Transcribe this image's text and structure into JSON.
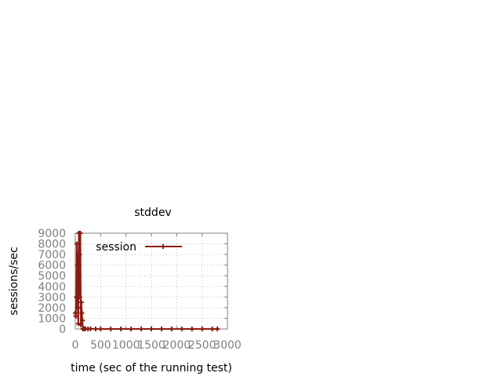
{
  "chart_data": {
    "type": "line",
    "title": "stddev",
    "xlabel": "time (sec of the running test)",
    "ylabel": "sessions/sec",
    "xlim": [
      0,
      3000
    ],
    "ylim": [
      0,
      9000
    ],
    "x_ticks": [
      0,
      500,
      1000,
      1500,
      2000,
      2500,
      3000
    ],
    "y_ticks": [
      0,
      1000,
      2000,
      3000,
      4000,
      5000,
      6000,
      7000,
      8000,
      9000
    ],
    "x_tick_labels": [
      "0",
      "500",
      "1000",
      "1500",
      "2000",
      "2500",
      "3000"
    ],
    "y_tick_labels": [
      "0",
      "1000",
      "2000",
      "3000",
      "4000",
      "5000",
      "6000",
      "7000",
      "8000",
      "9000"
    ],
    "grid": true,
    "legend_position": "top-right",
    "series": [
      {
        "name": "session",
        "color": "#8b1a0e",
        "x": [
          0,
          10,
          20,
          30,
          40,
          50,
          60,
          70,
          80,
          90,
          100,
          110,
          120,
          130,
          140,
          150,
          160,
          180,
          200,
          250,
          300,
          400,
          500,
          700,
          900,
          1100,
          1300,
          1500,
          1700,
          1900,
          2100,
          2300,
          2500,
          2700,
          2800
        ],
        "y": [
          1500,
          1200,
          3000,
          8000,
          6000,
          2000,
          500,
          9000,
          7000,
          3000,
          9000,
          400,
          2500,
          1500,
          800,
          0,
          30,
          20,
          10,
          0,
          5,
          0,
          0,
          0,
          0,
          0,
          0,
          0,
          0,
          0,
          0,
          0,
          0,
          0,
          0
        ]
      }
    ]
  }
}
